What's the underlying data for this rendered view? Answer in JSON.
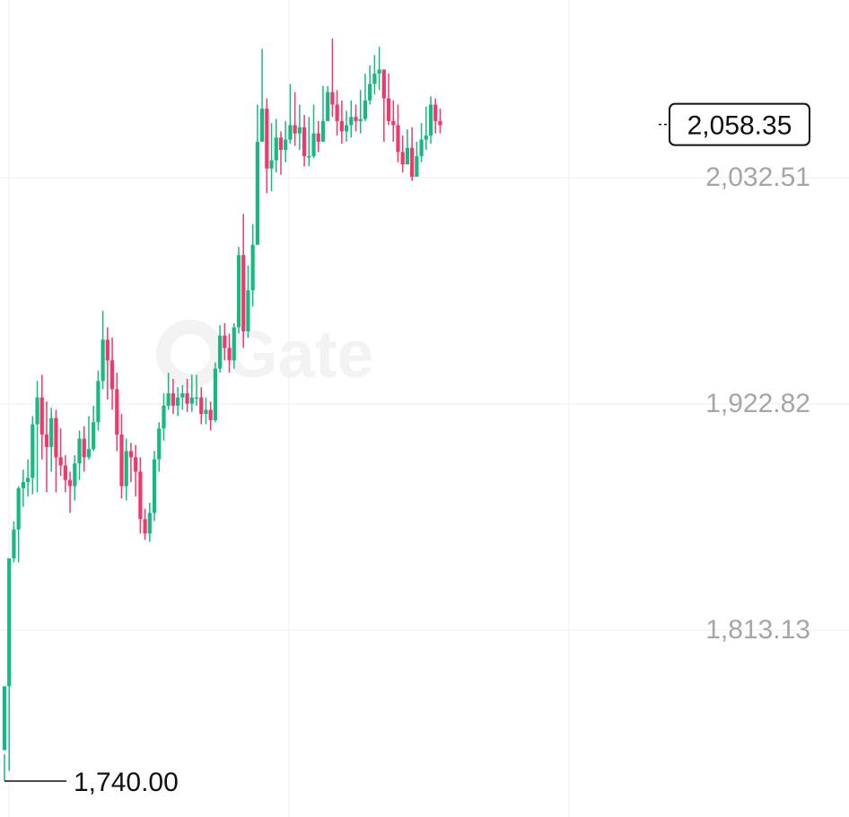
{
  "watermark": "Gate",
  "colors": {
    "up": "#17b983",
    "down": "#f0386a",
    "grid": "#efefef",
    "axis_text": "#a6a6a6",
    "marker": "#111111"
  },
  "chart_data": {
    "type": "candlestick",
    "title": "",
    "xlabel": "",
    "ylabel": "",
    "ylim": [
      1690,
      2100
    ],
    "y_ticks": [
      "2,032.51",
      "1,922.82",
      "1,813.13"
    ],
    "y_tick_values": [
      2032.51,
      1922.82,
      1813.13
    ],
    "last_price": 2058.35,
    "last_price_label": "2,058.35",
    "min_price": 1740.0,
    "min_price_label": "1,740.00",
    "grid": true,
    "candles": [
      [
        1755,
        1786,
        1753,
        1740
      ],
      [
        1786,
        1848,
        1790,
        1745
      ],
      [
        1848,
        1862,
        1866,
        1846
      ],
      [
        1862,
        1882,
        1883,
        1846
      ],
      [
        1882,
        1885,
        1891,
        1873
      ],
      [
        1885,
        1887,
        1896,
        1878
      ],
      [
        1887,
        1913,
        1917,
        1879
      ],
      [
        1913,
        1926,
        1934,
        1880
      ],
      [
        1926,
        1908,
        1937,
        1896
      ],
      [
        1908,
        1902,
        1924,
        1880
      ],
      [
        1902,
        1916,
        1921,
        1890
      ],
      [
        1916,
        1897,
        1920,
        1880
      ],
      [
        1897,
        1893,
        1911,
        1888
      ],
      [
        1893,
        1886,
        1898,
        1880
      ],
      [
        1886,
        1883,
        1890,
        1870
      ],
      [
        1883,
        1894,
        1898,
        1876
      ],
      [
        1894,
        1906,
        1910,
        1886
      ],
      [
        1906,
        1897,
        1912,
        1890
      ],
      [
        1897,
        1901,
        1917,
        1896
      ],
      [
        1901,
        1914,
        1922,
        1900
      ],
      [
        1914,
        1934,
        1939,
        1910
      ],
      [
        1934,
        1954,
        1968,
        1930
      ],
      [
        1954,
        1944,
        1960,
        1925
      ],
      [
        1944,
        1930,
        1955,
        1920
      ],
      [
        1930,
        1908,
        1938,
        1900
      ],
      [
        1908,
        1883,
        1918,
        1877
      ],
      [
        1883,
        1900,
        1906,
        1876
      ],
      [
        1900,
        1897,
        1904,
        1885
      ],
      [
        1897,
        1890,
        1903,
        1878
      ],
      [
        1890,
        1867,
        1897,
        1860
      ],
      [
        1867,
        1860,
        1872,
        1857
      ],
      [
        1860,
        1870,
        1875,
        1856
      ],
      [
        1870,
        1896,
        1900,
        1866
      ],
      [
        1896,
        1911,
        1914,
        1890
      ],
      [
        1911,
        1922,
        1928,
        1905
      ],
      [
        1922,
        1928,
        1938,
        1920
      ],
      [
        1928,
        1922,
        1935,
        1918
      ],
      [
        1922,
        1926,
        1931,
        1917
      ],
      [
        1926,
        1928,
        1932,
        1920
      ],
      [
        1928,
        1923,
        1935,
        1919
      ],
      [
        1923,
        1926,
        1937,
        1919
      ],
      [
        1926,
        1926,
        1937,
        1922
      ],
      [
        1926,
        1918,
        1931,
        1913
      ],
      [
        1918,
        1920,
        1926,
        1913
      ],
      [
        1920,
        1915,
        1924,
        1910
      ],
      [
        1915,
        1940,
        1943,
        1914
      ],
      [
        1940,
        1956,
        1961,
        1938
      ],
      [
        1956,
        1950,
        1962,
        1944
      ],
      [
        1950,
        1944,
        1957,
        1938
      ],
      [
        1944,
        1960,
        1962,
        1940
      ],
      [
        1960,
        1995,
        1999,
        1957
      ],
      [
        1995,
        1958,
        2015,
        1950
      ],
      [
        1958,
        1978,
        1990,
        1955
      ],
      [
        1978,
        2000,
        2010,
        1970
      ],
      [
        2000,
        2050,
        2068,
        2000
      ],
      [
        2050,
        2066,
        2095,
        2050
      ],
      [
        2066,
        2037,
        2071,
        2025
      ],
      [
        2037,
        2041,
        2059,
        2026
      ],
      [
        2041,
        2052,
        2061,
        2035
      ],
      [
        2052,
        2046,
        2055,
        2034
      ],
      [
        2046,
        2051,
        2060,
        2040
      ],
      [
        2051,
        2058,
        2078,
        2049
      ],
      [
        2058,
        2054,
        2074,
        2048
      ],
      [
        2054,
        2057,
        2068,
        2046
      ],
      [
        2057,
        2043,
        2063,
        2038
      ],
      [
        2043,
        2043,
        2062,
        2038
      ],
      [
        2043,
        2054,
        2068,
        2042
      ],
      [
        2054,
        2050,
        2060,
        2045
      ],
      [
        2050,
        2060,
        2077,
        2050
      ],
      [
        2060,
        2074,
        2077,
        2060
      ],
      [
        2074,
        2068,
        2100,
        2062
      ],
      [
        2068,
        2060,
        2075,
        2053
      ],
      [
        2060,
        2055,
        2070,
        2049
      ],
      [
        2055,
        2058,
        2065,
        2050
      ],
      [
        2058,
        2062,
        2070,
        2052
      ],
      [
        2062,
        2060,
        2068,
        2055
      ],
      [
        2060,
        2061,
        2075,
        2054
      ],
      [
        2061,
        2070,
        2083,
        2060
      ],
      [
        2070,
        2078,
        2087,
        2068
      ],
      [
        2078,
        2083,
        2092,
        2073
      ],
      [
        2083,
        2085,
        2096,
        2075
      ],
      [
        2085,
        2071,
        2085,
        2050
      ],
      [
        2071,
        2060,
        2083,
        2058
      ],
      [
        2060,
        2058,
        2070,
        2050
      ],
      [
        2058,
        2045,
        2068,
        2040
      ],
      [
        2045,
        2039,
        2053,
        2035
      ],
      [
        2039,
        2047,
        2056,
        2040
      ],
      [
        2047,
        2033,
        2057,
        2031
      ],
      [
        2033,
        2043,
        2050,
        2036
      ],
      [
        2043,
        2051,
        2059,
        2040
      ],
      [
        2051,
        2053,
        2067,
        2046
      ],
      [
        2053,
        2068,
        2072,
        2049
      ],
      [
        2068,
        2060,
        2071,
        2054
      ],
      [
        2060,
        2058,
        2066,
        2054
      ]
    ]
  }
}
